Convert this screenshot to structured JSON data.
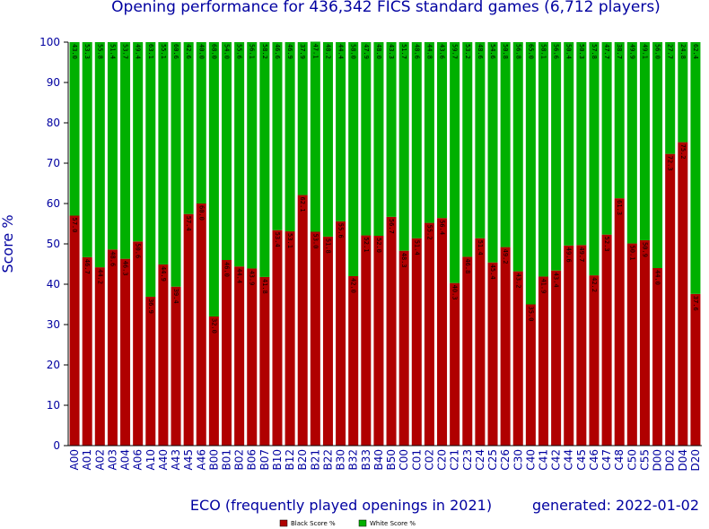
{
  "chart_data": {
    "type": "stacked_bar",
    "title": "Opening performance for 436,342 FICS standard games (6,712 players)",
    "ylabel": "Score %",
    "xlabel": "ECO (frequently played openings in 2021)",
    "annotation": "generated: 2022-01-02",
    "categories": [
      "A00",
      "A01",
      "A02",
      "A03",
      "A04",
      "A06",
      "A10",
      "A40",
      "A43",
      "A45",
      "A46",
      "B00",
      "B01",
      "B02",
      "B06",
      "B07",
      "B10",
      "B12",
      "B20",
      "B21",
      "B22",
      "B30",
      "B32",
      "B33",
      "B40",
      "B50",
      "C00",
      "C01",
      "C02",
      "C20",
      "C21",
      "C23",
      "C24",
      "C25",
      "C26",
      "C30",
      "C40",
      "C41",
      "C42",
      "C44",
      "C45",
      "C46",
      "C47",
      "C48",
      "C50",
      "C55",
      "D00",
      "D02",
      "D04",
      "D20"
    ],
    "series": [
      {
        "name": "Black Score %",
        "color": "#b00000",
        "values": [
          57.0,
          46.7,
          44.2,
          48.6,
          46.3,
          50.6,
          36.9,
          44.9,
          39.4,
          57.4,
          60.0,
          32.0,
          46.0,
          44.4,
          43.9,
          41.8,
          53.4,
          53.1,
          62.1,
          53.0,
          51.8,
          55.6,
          42.0,
          52.1,
          52.0,
          56.7,
          48.3,
          51.4,
          55.2,
          56.4,
          40.3,
          46.8,
          51.4,
          45.4,
          49.2,
          43.2,
          35.0,
          41.9,
          43.4,
          49.6,
          49.7,
          42.2,
          52.3,
          61.3,
          50.1,
          50.9,
          44.0,
          72.3,
          75.2,
          37.6
        ],
        "value_labels": [
          "57.0",
          "46.7",
          "44.2",
          "48.6",
          "46.3",
          "50.6",
          "36.9",
          "44.9",
          "39.4",
          "57.4",
          "60.0",
          "32.0",
          "46.0",
          "44.4",
          "43.9",
          "41.8",
          "53.4",
          "53.1",
          "62.1",
          "53.0",
          "51.8",
          "55.6",
          "42.0",
          "52.1",
          "52.0",
          "56.7",
          "48.3",
          "51.4",
          "55.2",
          "56.4",
          "40.3",
          "46.8",
          "51.4",
          "45.4",
          "49.2",
          "43.2",
          "35.0",
          "41.9",
          "43.4",
          "49.6",
          "49.7",
          "42.2",
          "52.3",
          "61.3",
          "50.1",
          "50.9",
          "44.0",
          "72.3",
          "75.2",
          "37.6"
        ]
      },
      {
        "name": "White Score %",
        "color": "#00b000",
        "values": [
          43.0,
          53.3,
          55.8,
          51.4,
          53.7,
          49.4,
          63.1,
          55.1,
          60.6,
          42.6,
          40.0,
          68.0,
          54.0,
          55.6,
          56.1,
          58.2,
          46.6,
          46.9,
          37.9,
          47.1,
          48.2,
          44.4,
          58.0,
          47.9,
          48.0,
          43.3,
          51.7,
          48.6,
          44.8,
          43.6,
          59.7,
          53.2,
          48.6,
          54.6,
          50.8,
          56.8,
          65.0,
          58.1,
          56.6,
          50.4,
          50.3,
          57.8,
          47.7,
          38.7,
          49.9,
          49.1,
          56.0,
          27.7,
          24.8,
          62.4
        ],
        "value_labels": [
          "43.0",
          "53.3",
          "55.8",
          "51.4",
          "53.7",
          "49.4",
          "63.1",
          "55.1",
          "60.6",
          "42.6",
          "40.0",
          "68.0",
          "54.0",
          "55.6",
          "56.1",
          "58.2",
          "46.6",
          "46.9",
          "37.9",
          "47.1",
          "48.2",
          "44.4",
          "58.0",
          "47.9",
          "48.0",
          "43.3",
          "51.7",
          "48.6",
          "44.8",
          "43.6",
          "59.7",
          "53.2",
          "48.6",
          "54.6",
          "50.8",
          "56.8",
          "65.0",
          "58.1",
          "56.6",
          "50.4",
          "50.3",
          "57.8",
          "47.7",
          "38.7",
          "49.9",
          "49.1",
          "56.0",
          "27.7",
          "24.8",
          "62.4"
        ]
      }
    ],
    "ylim": [
      0,
      100
    ],
    "yticks": [
      0,
      10,
      20,
      30,
      40,
      50,
      60,
      70,
      80,
      90,
      100
    ]
  }
}
